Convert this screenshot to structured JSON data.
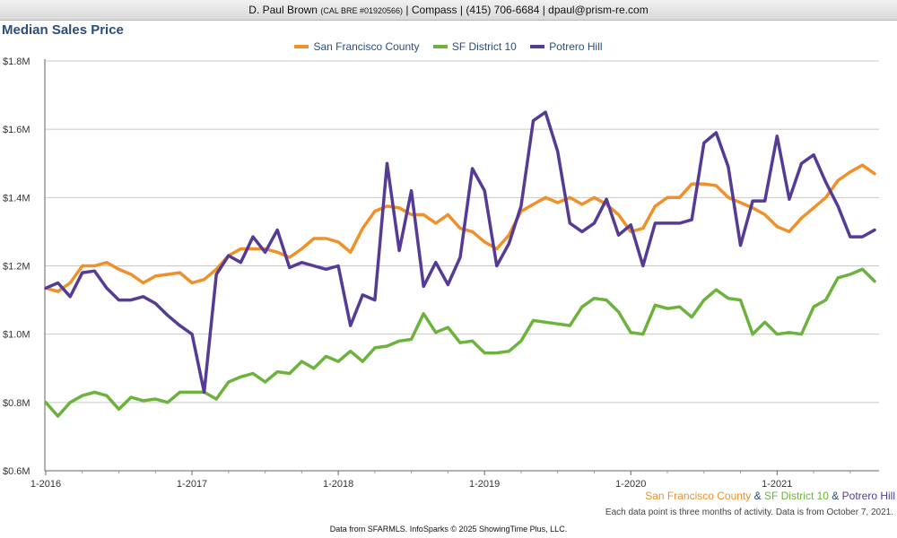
{
  "header": {
    "agent": "D. Paul Brown",
    "license": "(CAL BRE #01920566)",
    "contact": "| Compass | (415) 706-6684 | dpaul@prism-re.com"
  },
  "colors": {
    "sf_county": "#f0902a",
    "district10": "#6bb33c",
    "potrero": "#553a96"
  },
  "chart_data": {
    "type": "line",
    "title": "Median Sales Price",
    "ylim": [
      600000,
      1800000
    ],
    "y_ticks": [
      {
        "value": 600000,
        "label": "$0.6M"
      },
      {
        "value": 800000,
        "label": "$0.8M"
      },
      {
        "value": 1000000,
        "label": "$1.0M"
      },
      {
        "value": 1200000,
        "label": "$1.2M"
      },
      {
        "value": 1400000,
        "label": "$1.4M"
      },
      {
        "value": 1600000,
        "label": "$1.6M"
      },
      {
        "value": 1800000,
        "label": "$1.8M"
      }
    ],
    "x_ticks": [
      "1-2016",
      "1-2017",
      "1-2018",
      "1-2019",
      "1-2020",
      "1-2021"
    ],
    "x_start": "2016-01",
    "x_end": "2021-09",
    "legend_position": "top-center",
    "grid": true,
    "series": [
      {
        "name": "San Francisco County",
        "color": "#f0902a",
        "values": [
          1135000,
          1125000,
          1150000,
          1200000,
          1200000,
          1210000,
          1190000,
          1175000,
          1150000,
          1170000,
          1175000,
          1180000,
          1150000,
          1160000,
          1190000,
          1230000,
          1250000,
          1250000,
          1250000,
          1240000,
          1225000,
          1250000,
          1280000,
          1280000,
          1270000,
          1240000,
          1310000,
          1360000,
          1375000,
          1370000,
          1350000,
          1350000,
          1325000,
          1350000,
          1310000,
          1300000,
          1270000,
          1250000,
          1290000,
          1360000,
          1380000,
          1400000,
          1385000,
          1400000,
          1380000,
          1400000,
          1380000,
          1350000,
          1300000,
          1310000,
          1375000,
          1400000,
          1400000,
          1440000,
          1440000,
          1435000,
          1400000,
          1385000,
          1370000,
          1350000,
          1315000,
          1300000,
          1340000,
          1370000,
          1400000,
          1450000,
          1475000,
          1495000,
          1470000
        ]
      },
      {
        "name": "SF District 10",
        "color": "#6bb33c",
        "values": [
          800000,
          760000,
          800000,
          820000,
          830000,
          820000,
          780000,
          815000,
          805000,
          810000,
          800000,
          830000,
          830000,
          830000,
          810000,
          860000,
          875000,
          885000,
          860000,
          890000,
          885000,
          920000,
          900000,
          935000,
          920000,
          950000,
          920000,
          960000,
          965000,
          980000,
          985000,
          1060000,
          1005000,
          1020000,
          975000,
          980000,
          945000,
          945000,
          950000,
          980000,
          1040000,
          1035000,
          1030000,
          1025000,
          1080000,
          1105000,
          1100000,
          1065000,
          1005000,
          1000000,
          1085000,
          1075000,
          1080000,
          1050000,
          1100000,
          1130000,
          1105000,
          1100000,
          1000000,
          1035000,
          1000000,
          1005000,
          1000000,
          1080000,
          1100000,
          1165000,
          1175000,
          1190000,
          1155000
        ]
      },
      {
        "name": "Potrero Hill",
        "color": "#553a96",
        "values": [
          1135000,
          1150000,
          1110000,
          1180000,
          1185000,
          1135000,
          1100000,
          1100000,
          1110000,
          1090000,
          1055000,
          1025000,
          1000000,
          830000,
          1175000,
          1230000,
          1210000,
          1285000,
          1240000,
          1305000,
          1195000,
          1210000,
          1200000,
          1190000,
          1200000,
          1025000,
          1115000,
          1100000,
          1500000,
          1245000,
          1420000,
          1140000,
          1210000,
          1145000,
          1225000,
          1485000,
          1420000,
          1200000,
          1265000,
          1375000,
          1625000,
          1650000,
          1535000,
          1325000,
          1300000,
          1325000,
          1395000,
          1290000,
          1320000,
          1200000,
          1325000,
          1325000,
          1325000,
          1335000,
          1560000,
          1590000,
          1490000,
          1260000,
          1390000,
          1390000,
          1580000,
          1395000,
          1500000,
          1525000,
          1445000,
          1375000,
          1285000,
          1285000,
          1305000
        ]
      }
    ]
  },
  "caption": {
    "sf_county": "San Francisco County",
    "amp": " & ",
    "district10": "SF District 10",
    "potrero": "Potrero Hill"
  },
  "note": "Each data point is three months of activity. Data is from October 7, 2021.",
  "footer": "Data from SFARMLS. InfoSparks © 2025 ShowingTime Plus, LLC."
}
